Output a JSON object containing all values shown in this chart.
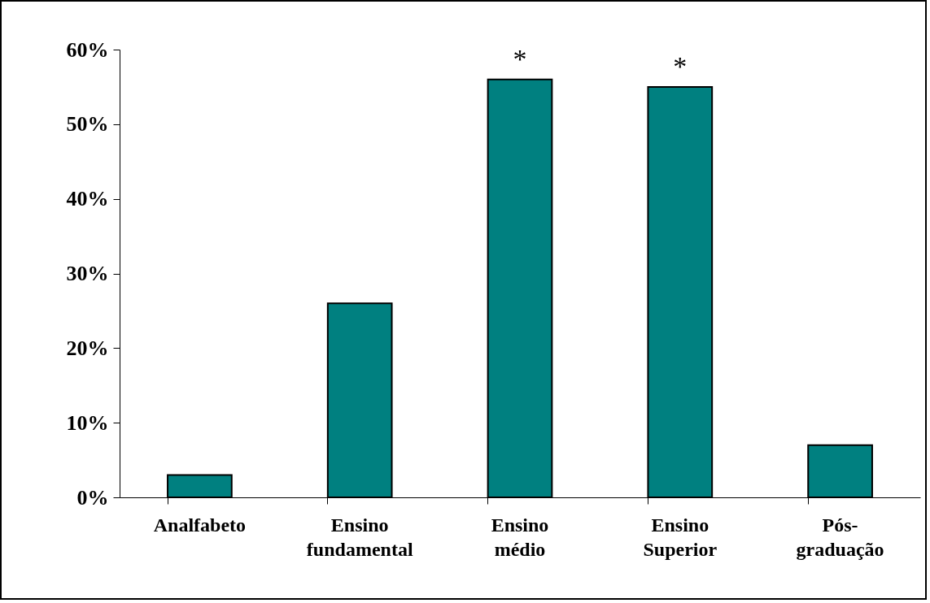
{
  "chart_data": {
    "type": "bar",
    "categories": [
      "Analfabeto",
      "Ensino fundamental",
      "Ensino médio",
      "Ensino Superior",
      "Pós-graduação"
    ],
    "values": [
      3,
      26,
      56,
      55,
      7
    ],
    "color": "#008080",
    "ylim": [
      0,
      60
    ],
    "yticks": [
      {
        "value": 0,
        "label": "0%"
      },
      {
        "value": 10,
        "label": "10%"
      },
      {
        "value": 20,
        "label": "20%"
      },
      {
        "value": 30,
        "label": "30%"
      },
      {
        "value": 40,
        "label": "40%"
      },
      {
        "value": 50,
        "label": "50%"
      },
      {
        "value": 60,
        "label": "60%"
      }
    ],
    "annotations": [
      {
        "text": "*",
        "x": "Ensino médio",
        "y": 56
      },
      {
        "text": "*",
        "x": "Ensino Superior",
        "y": 55
      }
    ]
  }
}
